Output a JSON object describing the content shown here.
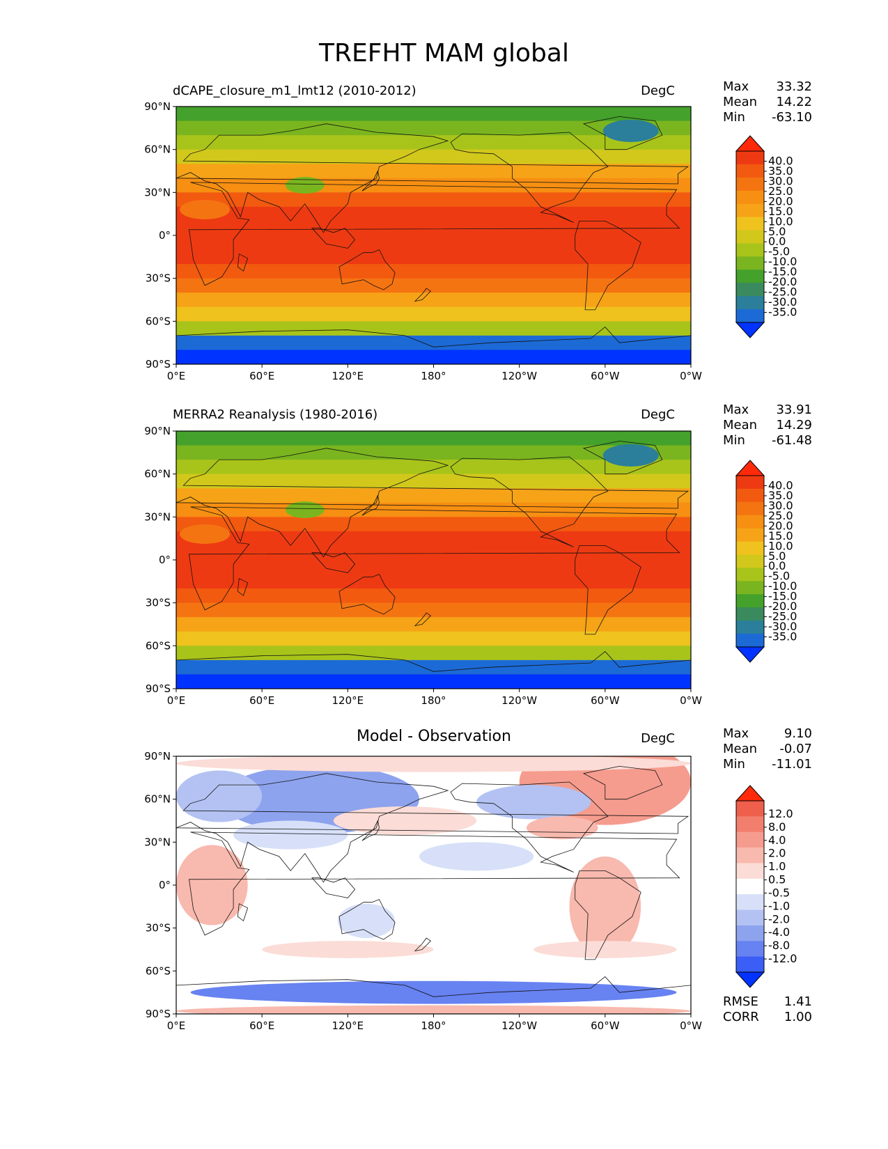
{
  "title": "TREFHT MAM global",
  "lat_ticks": [
    "90°N",
    "60°N",
    "30°N",
    "0°",
    "30°S",
    "60°S",
    "90°S"
  ],
  "lon_ticks": [
    "0°E",
    "60°E",
    "120°E",
    "180°",
    "120°W",
    "60°W",
    "0°W"
  ],
  "colors": {
    "temp_scale": [
      "#0033ff",
      "#1c6ad6",
      "#2b7f9a",
      "#3a8a5e",
      "#44a12b",
      "#7ab51f",
      "#a8c41a",
      "#d2c81c",
      "#f0c21e",
      "#f6a318",
      "#f78f12",
      "#f57412",
      "#f25a10",
      "#ee3a12",
      "#ff2a0a"
    ],
    "diff_scale": [
      "#0033ff",
      "#3b5ef7",
      "#6782f1",
      "#8ea3ee",
      "#b3c2f2",
      "#d7e0f8",
      "#ffffff",
      "#fbdcd6",
      "#f8b9ae",
      "#f59c8e",
      "#f27f6d",
      "#ee5f4c",
      "#ff2a0a"
    ]
  },
  "panels": [
    {
      "left_title": "dCAPE_closure_m1_lmt12 (2010-2012)",
      "center_title": "",
      "units": "DegC",
      "stats": [
        {
          "label": "Max",
          "value": "33.32"
        },
        {
          "label": "Mean",
          "value": "14.22"
        },
        {
          "label": "Min",
          "value": "-63.10"
        }
      ],
      "colorbar_labels": [
        "40.0",
        "35.0",
        "30.0",
        "25.0",
        "20.0",
        "15.0",
        "10.0",
        "5.0",
        "0.0",
        "-5.0",
        "-10.0",
        "-15.0",
        "-20.0",
        "-25.0",
        "-30.0",
        "-35.0"
      ],
      "scale": "temp",
      "extra_stats": []
    },
    {
      "left_title": "MERRA2 Reanalysis (1980-2016)",
      "center_title": "",
      "units": "DegC",
      "stats": [
        {
          "label": "Max",
          "value": "33.91"
        },
        {
          "label": "Mean",
          "value": "14.29"
        },
        {
          "label": "Min",
          "value": "-61.48"
        }
      ],
      "colorbar_labels": [
        "40.0",
        "35.0",
        "30.0",
        "25.0",
        "20.0",
        "15.0",
        "10.0",
        "5.0",
        "0.0",
        "-5.0",
        "-10.0",
        "-15.0",
        "-20.0",
        "-25.0",
        "-30.0",
        "-35.0"
      ],
      "scale": "temp",
      "extra_stats": []
    },
    {
      "left_title": "",
      "center_title": "Model - Observation",
      "units": "DegC",
      "stats": [
        {
          "label": "Max",
          "value": "9.10"
        },
        {
          "label": "Mean",
          "value": "-0.07"
        },
        {
          "label": "Min",
          "value": "-11.01"
        }
      ],
      "colorbar_labels": [
        "12.0",
        "8.0",
        "4.0",
        "2.0",
        "1.0",
        "0.5",
        "-0.5",
        "-1.0",
        "-2.0",
        "-4.0",
        "-8.0",
        "-12.0"
      ],
      "scale": "diff",
      "extra_stats": [
        {
          "label": "RMSE",
          "value": "1.41"
        },
        {
          "label": "CORR",
          "value": "1.00"
        }
      ]
    }
  ],
  "chart_data": [
    {
      "type": "heatmap",
      "title": "dCAPE_closure_m1_lmt12 (2010-2012)",
      "units": "DegC",
      "xlim": [
        0,
        360
      ],
      "ylim": [
        -90,
        90
      ],
      "x_ticks": [
        "0°E",
        "60°E",
        "120°E",
        "180°",
        "120°W",
        "60°W",
        "0°W"
      ],
      "y_ticks": [
        "90°N",
        "60°N",
        "30°N",
        "0°",
        "30°S",
        "60°S",
        "90°S"
      ],
      "zonal_band_values": {
        "lat": [
          85,
          75,
          65,
          55,
          45,
          35,
          25,
          15,
          5,
          -5,
          -15,
          -25,
          -35,
          -45,
          -55,
          -65,
          -75,
          -85
        ],
        "value": [
          -20,
          -15,
          -8,
          -2,
          5,
          14,
          22,
          26,
          27,
          27,
          25,
          21,
          15,
          8,
          2,
          -6,
          -35,
          -45
        ]
      },
      "stats": {
        "max": 33.32,
        "mean": 14.22,
        "min": -63.1
      },
      "colorbar": [
        -35,
        -30,
        -25,
        -20,
        -15,
        -10,
        -5,
        0,
        5,
        10,
        15,
        20,
        25,
        30,
        35,
        40
      ]
    },
    {
      "type": "heatmap",
      "title": "MERRA2 Reanalysis (1980-2016)",
      "units": "DegC",
      "xlim": [
        0,
        360
      ],
      "ylim": [
        -90,
        90
      ],
      "x_ticks": [
        "0°E",
        "60°E",
        "120°E",
        "180°",
        "120°W",
        "60°W",
        "0°W"
      ],
      "y_ticks": [
        "90°N",
        "60°N",
        "30°N",
        "0°",
        "30°S",
        "60°S",
        "90°S"
      ],
      "zonal_band_values": {
        "lat": [
          85,
          75,
          65,
          55,
          45,
          35,
          25,
          15,
          5,
          -5,
          -15,
          -25,
          -35,
          -45,
          -55,
          -65,
          -75,
          -85
        ],
        "value": [
          -20,
          -15,
          -8,
          -2,
          5,
          14,
          22,
          26,
          27,
          27,
          25,
          21,
          15,
          8,
          2,
          -6,
          -35,
          -45
        ]
      },
      "stats": {
        "max": 33.91,
        "mean": 14.29,
        "min": -61.48
      },
      "colorbar": [
        -35,
        -30,
        -25,
        -20,
        -15,
        -10,
        -5,
        0,
        5,
        10,
        15,
        20,
        25,
        30,
        35,
        40
      ]
    },
    {
      "type": "heatmap",
      "title": "Model - Observation",
      "units": "DegC",
      "xlim": [
        0,
        360
      ],
      "ylim": [
        -90,
        90
      ],
      "x_ticks": [
        "0°E",
        "60°E",
        "120°E",
        "180°",
        "120°W",
        "60°W",
        "0°W"
      ],
      "y_ticks": [
        "90°N",
        "60°N",
        "30°N",
        "0°",
        "30°S",
        "60°S",
        "90°S"
      ],
      "stats": {
        "max": 9.1,
        "mean": -0.07,
        "min": -11.01,
        "rmse": 1.41,
        "corr": 1.0
      },
      "colorbar": [
        -12,
        -8,
        -4,
        -2,
        -1,
        -0.5,
        0.5,
        1,
        2,
        4,
        8,
        12
      ]
    }
  ]
}
